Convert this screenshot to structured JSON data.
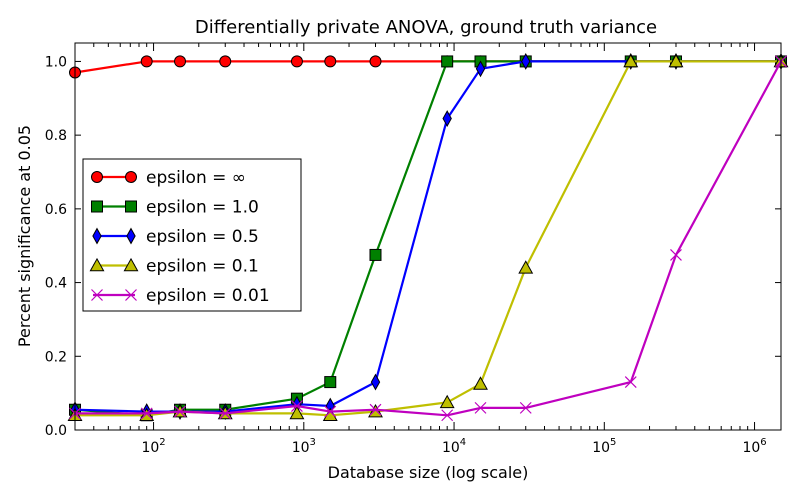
{
  "chart_data": {
    "type": "line",
    "title": "Differentially private ANOVA, ground truth variance",
    "xlabel": "Database size (log scale)",
    "ylabel": "Percent significance at 0.05",
    "xscale": "log",
    "xlim": [
      30,
      1500000
    ],
    "ylim": [
      0.0,
      1.05
    ],
    "yticks": [
      "0.0",
      "0.2",
      "0.4",
      "0.6",
      "0.8",
      "1.0"
    ],
    "xticks": [
      {
        "base": "10",
        "exp": "2"
      },
      {
        "base": "10",
        "exp": "3"
      },
      {
        "base": "10",
        "exp": "4"
      },
      {
        "base": "10",
        "exp": "5"
      },
      {
        "base": "10",
        "exp": "6"
      }
    ],
    "grid": false,
    "legend_position": "center-left",
    "series": [
      {
        "name": "epsilon = ∞",
        "color": "#ff0000",
        "marker": "circle",
        "x": [
          30,
          90,
          150,
          300,
          900,
          1500,
          3000,
          9000,
          15000,
          30000,
          150000,
          300000,
          1500000
        ],
        "y": [
          0.97,
          1.0,
          1.0,
          1.0,
          1.0,
          1.0,
          1.0,
          1.0,
          1.0,
          1.0,
          1.0,
          1.0,
          1.0
        ]
      },
      {
        "name": "epsilon = 1.0",
        "color": "#008000",
        "marker": "square",
        "x": [
          30,
          90,
          150,
          300,
          900,
          1500,
          3000,
          9000,
          15000,
          30000,
          150000,
          300000,
          1500000
        ],
        "y": [
          0.055,
          0.04,
          0.055,
          0.055,
          0.085,
          0.13,
          0.475,
          1.0,
          1.0,
          1.0,
          1.0,
          1.0,
          1.0
        ]
      },
      {
        "name": "epsilon = 0.5",
        "color": "#0000ff",
        "marker": "diamond",
        "x": [
          30,
          90,
          150,
          300,
          900,
          1500,
          3000,
          9000,
          15000,
          30000,
          150000,
          300000,
          1500000
        ],
        "y": [
          0.055,
          0.05,
          0.05,
          0.05,
          0.07,
          0.065,
          0.13,
          0.845,
          0.98,
          1.0,
          1.0,
          1.0,
          1.0
        ]
      },
      {
        "name": "epsilon = 0.1",
        "color": "#bfbf00",
        "marker": "triangle",
        "x": [
          30,
          90,
          150,
          300,
          900,
          1500,
          3000,
          9000,
          15000,
          30000,
          150000,
          300000,
          1500000
        ],
        "y": [
          0.04,
          0.04,
          0.05,
          0.045,
          0.045,
          0.04,
          0.05,
          0.075,
          0.125,
          0.44,
          1.0,
          1.0,
          1.0
        ]
      },
      {
        "name": "epsilon = 0.01",
        "color": "#bf00bf",
        "marker": "x",
        "x": [
          30,
          90,
          150,
          300,
          900,
          1500,
          3000,
          9000,
          15000,
          30000,
          150000,
          300000,
          1500000
        ],
        "y": [
          0.045,
          0.045,
          0.05,
          0.045,
          0.065,
          0.05,
          0.055,
          0.04,
          0.06,
          0.06,
          0.13,
          0.475,
          1.0
        ]
      }
    ]
  }
}
